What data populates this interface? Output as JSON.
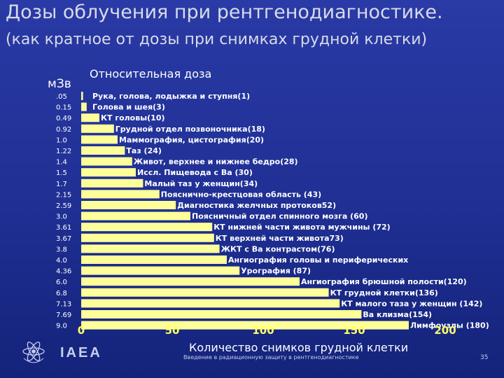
{
  "slide": {
    "title": "Дозы облучения при рентгенодиагностике.",
    "subtitle": "(как кратное от дозы при снимках грудной клетки)",
    "footer": "Введение в радиационную защиту в рентгенодиагностике",
    "page_number": "35",
    "logo_text": "IAEA"
  },
  "chart_data": {
    "type": "bar",
    "orientation": "horizontal",
    "ylabel": "мЗв",
    "series_title": "Относительная доза",
    "xlabel": "Количество снимков грудной клетки",
    "xlim": [
      0,
      200
    ],
    "xticks": [
      "0",
      "50",
      "100",
      "150",
      "200"
    ],
    "bar_color": "#ffff99",
    "dose_labels": [
      ".05",
      "0.15",
      "0.49",
      "0.92",
      "1.0",
      "1.22",
      "1.4",
      "1.5",
      "1.7",
      "2.15",
      "2.59",
      "3.0",
      "3.61",
      "3.67",
      "3.8",
      "4.0",
      "4.36",
      "6.0",
      "6.8",
      "7.13",
      "7.69",
      "9.0"
    ],
    "categories": [
      "Рука, голова, лодыжка и ступня(1)",
      "Голова и шея(3)",
      "КТ головы(10)",
      "Грудной отдел позвоночника(18)",
      "Маммография, цистография(20)",
      "Таз (24)",
      "Живот, верхнее и нижнее бедро(28)",
      "Иссл. Пищевода с Ва (30)",
      "Малый таз у женщин(34)",
      "Пояснично-крестцовая область (43)",
      "Диагностика желчных протоков52)",
      "Поясничный отдел спинного мозга (60)",
      "КТ нижней части живота мужчины (72)",
      "КТ верхней части живота73)",
      "ЖКТ с Ва контрастом(76)",
      "Ангиография головы и периферических",
      "Урография (87)",
      "Ангиография брюшной полости(120)",
      "КТ грудной клетки(136)",
      "КТ малого таза у женщин (142)",
      "Ва клизма(154)",
      "Лимфоузлы (180)"
    ],
    "values": [
      1,
      3,
      10,
      18,
      20,
      24,
      28,
      30,
      34,
      43,
      52,
      60,
      72,
      73,
      76,
      80,
      87,
      120,
      136,
      142,
      154,
      180
    ]
  }
}
